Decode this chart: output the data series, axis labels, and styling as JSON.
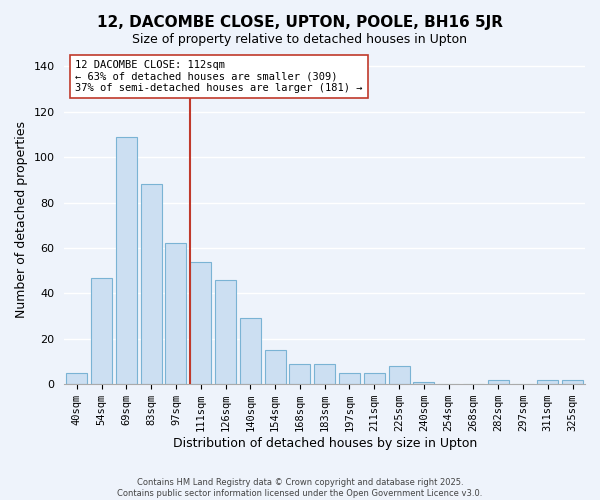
{
  "title": "12, DACOMBE CLOSE, UPTON, POOLE, BH16 5JR",
  "subtitle": "Size of property relative to detached houses in Upton",
  "xlabel": "Distribution of detached houses by size in Upton",
  "ylabel": "Number of detached properties",
  "bar_labels": [
    "40sqm",
    "54sqm",
    "69sqm",
    "83sqm",
    "97sqm",
    "111sqm",
    "126sqm",
    "140sqm",
    "154sqm",
    "168sqm",
    "183sqm",
    "197sqm",
    "211sqm",
    "225sqm",
    "240sqm",
    "254sqm",
    "268sqm",
    "282sqm",
    "297sqm",
    "311sqm",
    "325sqm"
  ],
  "bar_values": [
    5,
    47,
    109,
    88,
    62,
    54,
    46,
    29,
    15,
    9,
    9,
    5,
    5,
    8,
    1,
    0,
    0,
    2,
    0,
    2,
    2
  ],
  "bar_color": "#ccdff2",
  "bar_edge_color": "#7ab3d4",
  "bar_edge_width": 0.8,
  "vline_x_index": 5,
  "vline_color": "#c0392b",
  "annotation_line1": "12 DACOMBE CLOSE: 112sqm",
  "annotation_line2": "← 63% of detached houses are smaller (309)",
  "annotation_line3": "37% of semi-detached houses are larger (181) →",
  "ylim": [
    0,
    145
  ],
  "yticks": [
    0,
    20,
    40,
    60,
    80,
    100,
    120,
    140
  ],
  "background_color": "#eef3fb",
  "grid_color": "#ffffff",
  "footer_line1": "Contains HM Land Registry data © Crown copyright and database right 2025.",
  "footer_line2": "Contains public sector information licensed under the Open Government Licence v3.0."
}
